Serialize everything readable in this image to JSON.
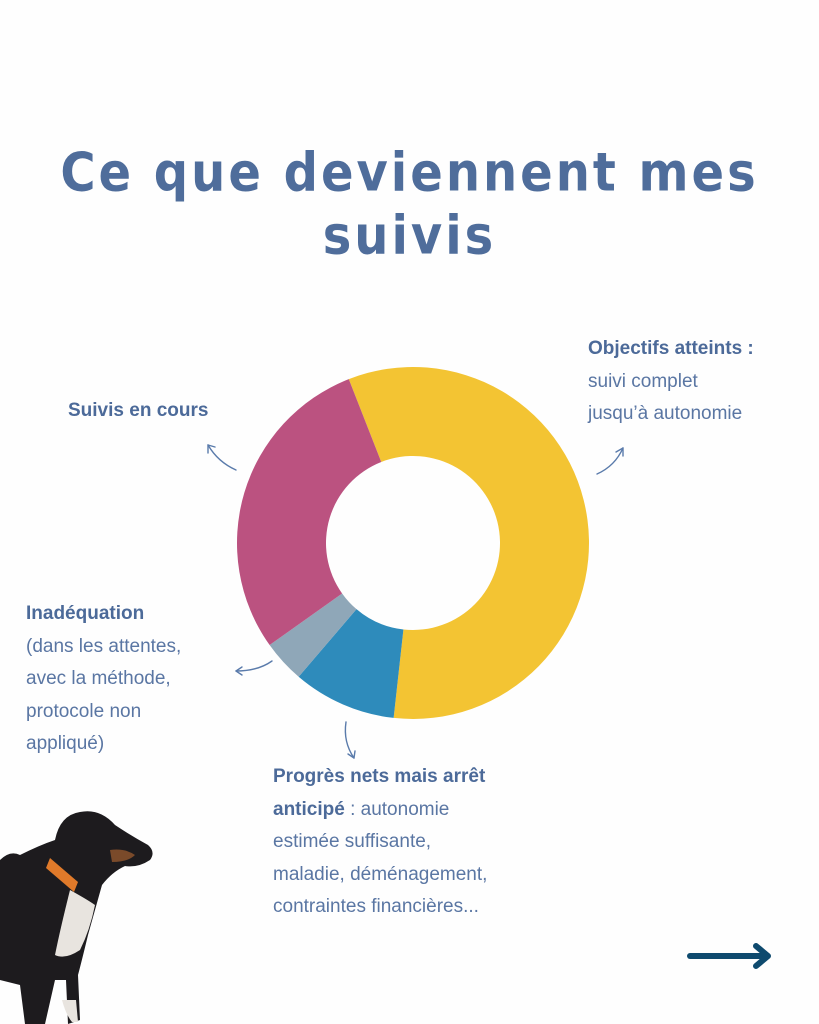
{
  "title": "Ce que deviennent mes suivis",
  "labels": {
    "objectifs": {
      "bold": "Objectifs atteints  :",
      "lines": [
        "suivi complet",
        "jusqu’à autonomie"
      ]
    },
    "suivis": {
      "bold": "Suivis en cours"
    },
    "inadequation": {
      "bold": "Inadéquation",
      "lines": [
        "(dans les attentes,",
        "avec la méthode,",
        "protocole non",
        "appliqué)"
      ]
    },
    "progres": {
      "bold1": "Progrès nets mais arrêt",
      "bold2": "anticipé",
      "rest2": " : autonomie",
      "lines": [
        "estimée suffisante,",
        "maladie, déménagement,",
        "contraintes financières..."
      ]
    }
  },
  "next_arrow": {
    "icon": "arrow-right-icon",
    "color": "#0e4a6e"
  },
  "colors": {
    "text": "#4f6d9b",
    "yellow": "#f3c433",
    "pink": "#bb5280",
    "blue": "#2e8bbb",
    "gray": "#8fa7b8"
  },
  "chart_data": {
    "type": "pie",
    "donut": true,
    "title": "Ce que deviennent mes suivis",
    "categories": [
      "Objectifs atteints : suivi complet jusqu’à autonomie",
      "Progrès nets mais arrêt anticipé",
      "Inadéquation",
      "Suivis en cours"
    ],
    "values": [
      57.7,
      9.5,
      3.9,
      28.9
    ],
    "colors": [
      "#f3c433",
      "#2e8bbb",
      "#8fa7b8",
      "#bb5280"
    ],
    "start_angle_deg": 338.6,
    "direction": "clockwise",
    "legend": "callout labels with arrows",
    "center": [
      413,
      543
    ],
    "outer_radius": 176,
    "inner_radius": 87
  }
}
